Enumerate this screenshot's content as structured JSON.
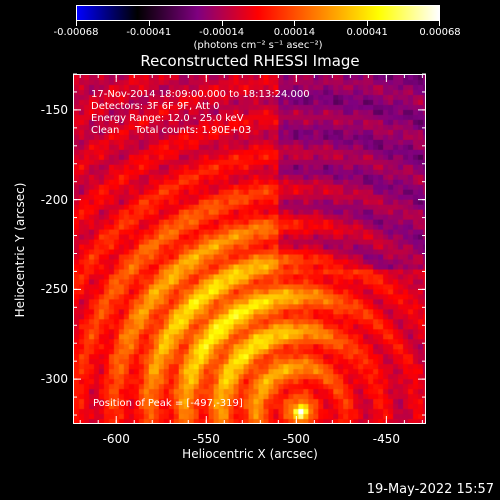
{
  "colorbar": {
    "tick_labels": [
      "-0.00068",
      "-0.00041",
      "-0.00014",
      "0.00014",
      "0.00041",
      "0.00068"
    ],
    "units": "(photons cm⁻² s⁻¹ asec⁻²)",
    "colors": [
      "#0000ff",
      "#000000",
      "#7f0080",
      "#ff0000",
      "#ff8000",
      "#ffff00",
      "#ffffff"
    ]
  },
  "title": "Reconstructed RHESSI Image",
  "overlay": {
    "time_range": "17-Nov-2014 18:09:00.000 to 18:13:24.000",
    "detectors": "Detectors: 3F 6F 9F, Att 0",
    "energy_range": "Energy Range: 12.0 - 25.0 keV",
    "algorithm": "Clean",
    "total_counts": "Total counts: 1.90E+03",
    "peak_position": "Position of Peak = [-497,-319]"
  },
  "chart_data": {
    "type": "heatmap",
    "title": "Reconstructed RHESSI Image",
    "xlabel": "Heliocentric X (arcsec)",
    "ylabel": "Heliocentric Y (arcsec)",
    "xlim": [
      -624,
      -428
    ],
    "ylim": [
      -325,
      -130
    ],
    "xticks": [
      -600,
      -550,
      -500,
      -450
    ],
    "xtick_labels": [
      "-600",
      "-550",
      "-500",
      "-450"
    ],
    "yticks": [
      -300,
      -250,
      -200,
      -150
    ],
    "ytick_labels": [
      "-300",
      "-250",
      "-200",
      "-150"
    ],
    "peak": [
      -497,
      -319
    ],
    "value_range": [
      -0.00068,
      0.00068
    ]
  },
  "timestamp": "19-May-2022 15:57"
}
